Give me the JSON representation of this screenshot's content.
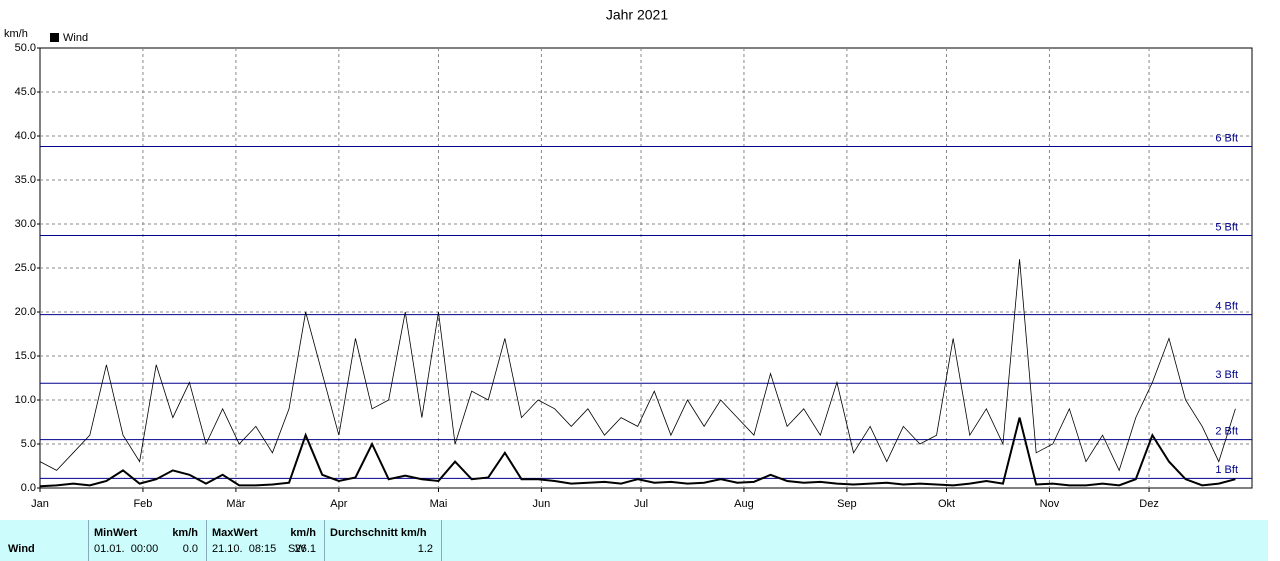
{
  "chart_data": {
    "type": "line",
    "title": "Jahr 2021",
    "ylabel": "km/h",
    "xlim": [
      0,
      365
    ],
    "xticks": [
      {
        "value": 0,
        "label": "Jan"
      },
      {
        "value": 31,
        "label": "Feb"
      },
      {
        "value": 59,
        "label": "Mär"
      },
      {
        "value": 90,
        "label": "Apr"
      },
      {
        "value": 120,
        "label": "Mai"
      },
      {
        "value": 151,
        "label": "Jun"
      },
      {
        "value": 181,
        "label": "Jul"
      },
      {
        "value": 212,
        "label": "Aug"
      },
      {
        "value": 243,
        "label": "Sep"
      },
      {
        "value": 273,
        "label": "Okt"
      },
      {
        "value": 304,
        "label": "Nov"
      },
      {
        "value": 334,
        "label": "Dez"
      }
    ],
    "ylim": [
      0,
      50
    ],
    "yticks": [
      {
        "value": 0,
        "label": "0.0"
      },
      {
        "value": 5,
        "label": "5.0"
      },
      {
        "value": 10,
        "label": "10.0"
      },
      {
        "value": 15,
        "label": "15.0"
      },
      {
        "value": 20,
        "label": "20.0"
      },
      {
        "value": 25,
        "label": "25.0"
      },
      {
        "value": 30,
        "label": "30.0"
      },
      {
        "value": 35,
        "label": "35.0"
      },
      {
        "value": 40,
        "label": "40.0"
      },
      {
        "value": 45,
        "label": "45.0"
      },
      {
        "value": 50,
        "label": "50.0"
      }
    ],
    "grid": true,
    "reference_lines": [
      {
        "value": 1.1,
        "label": "1 Bft"
      },
      {
        "value": 5.5,
        "label": "2 Bft"
      },
      {
        "value": 11.9,
        "label": "3 Bft"
      },
      {
        "value": 19.7,
        "label": "4 Bft"
      },
      {
        "value": 28.7,
        "label": "5 Bft"
      },
      {
        "value": 38.8,
        "label": "6 Bft"
      }
    ],
    "reference_color": "#00008b",
    "x": [
      0,
      5,
      10,
      15,
      20,
      25,
      30,
      35,
      40,
      45,
      50,
      55,
      60,
      65,
      70,
      75,
      80,
      85,
      90,
      95,
      100,
      105,
      110,
      115,
      120,
      125,
      130,
      135,
      140,
      145,
      150,
      155,
      160,
      165,
      170,
      175,
      180,
      185,
      190,
      195,
      200,
      205,
      210,
      215,
      220,
      225,
      230,
      235,
      240,
      245,
      250,
      255,
      260,
      265,
      270,
      275,
      280,
      285,
      290,
      295,
      300,
      305,
      310,
      315,
      320,
      325,
      330,
      335,
      340,
      345,
      350,
      355,
      360
    ],
    "series": [
      {
        "color": "#000000",
        "line_width": 0.8,
        "values": [
          3,
          2,
          4,
          6,
          14,
          6,
          3,
          14,
          8,
          12,
          5,
          9,
          5,
          7,
          4,
          9,
          20,
          13,
          6,
          17,
          9,
          10,
          20,
          8,
          20,
          5,
          11,
          10,
          17,
          8,
          10,
          9,
          7,
          9,
          6,
          8,
          7,
          11,
          6,
          10,
          7,
          10,
          8,
          6,
          13,
          7,
          9,
          6,
          12,
          4,
          7,
          3,
          7,
          5,
          6,
          17,
          6,
          9,
          5,
          26,
          4,
          5,
          9,
          3,
          6,
          2,
          8,
          12,
          17,
          10,
          7,
          3,
          9
        ]
      },
      {
        "name": "Wind",
        "color": "#000000",
        "line_width": 2,
        "values": [
          0.2,
          0.3,
          0.5,
          0.3,
          0.8,
          2,
          0.5,
          1,
          2,
          1.5,
          0.5,
          1.5,
          0.3,
          0.3,
          0.4,
          0.6,
          6,
          1.5,
          0.8,
          1.2,
          5,
          1,
          1.4,
          1,
          0.8,
          3,
          1,
          1.2,
          4,
          1,
          1,
          0.8,
          0.5,
          0.6,
          0.7,
          0.5,
          1,
          0.6,
          0.7,
          0.5,
          0.6,
          1,
          0.6,
          0.7,
          1.5,
          0.8,
          0.6,
          0.7,
          0.5,
          0.4,
          0.5,
          0.6,
          0.4,
          0.5,
          0.4,
          0.3,
          0.5,
          0.8,
          0.5,
          8,
          0.4,
          0.5,
          0.3,
          0.3,
          0.5,
          0.3,
          1,
          6,
          3,
          1,
          0.3,
          0.5,
          1
        ]
      }
    ]
  },
  "table": {
    "row_label": "Wind",
    "columns": [
      {
        "header": [
          "MinWert",
          "km/h"
        ],
        "values": [
          "01.01.  00:00",
          "0.0"
        ]
      },
      {
        "header": [
          "MaxWert",
          "km/h"
        ],
        "values": [
          "21.10.  08:15",
          "SW",
          "26.1"
        ]
      },
      {
        "header": [
          "Durchschnitt km/h"
        ],
        "values": [
          "1.2"
        ]
      }
    ]
  }
}
